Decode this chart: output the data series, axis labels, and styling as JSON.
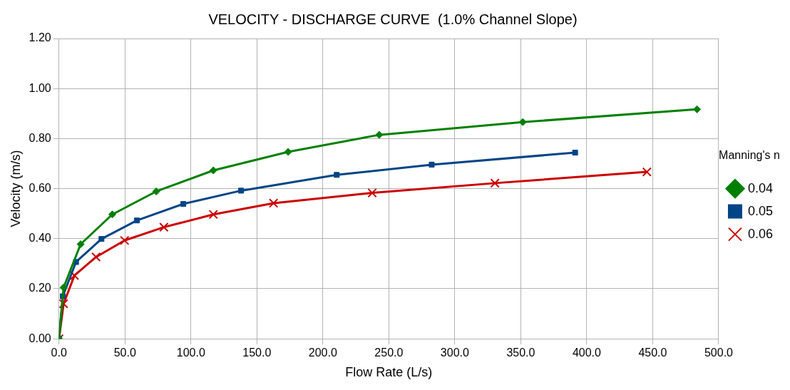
{
  "chart_data": {
    "type": "line",
    "title": "VELOCITY - DISCHARGE CURVE  (1.0% Channel Slope)",
    "xlabel": "Flow Rate (L/s)",
    "ylabel": "Velocity (m/s)",
    "legend_title": "Manning's n",
    "legend": "right",
    "grid": true,
    "line_style": "solid",
    "xlim": [
      0,
      500
    ],
    "xticks": [
      {
        "value": 0,
        "label": "0.0"
      },
      {
        "value": 50,
        "label": "50.0"
      },
      {
        "value": 100,
        "label": "100.0"
      },
      {
        "value": 150,
        "label": "150.0"
      },
      {
        "value": 200,
        "label": "200.0"
      },
      {
        "value": 250,
        "label": "250.0"
      },
      {
        "value": 300,
        "label": "300.0"
      },
      {
        "value": 350,
        "label": "350.0"
      },
      {
        "value": 400,
        "label": "400.0"
      },
      {
        "value": 450,
        "label": "450.0"
      },
      {
        "value": 500,
        "label": "500.0"
      }
    ],
    "ylim": [
      0,
      1.2
    ],
    "yticks": [
      {
        "value": 0,
        "label": "0.00"
      },
      {
        "value": 0.2,
        "label": "0.20"
      },
      {
        "value": 0.4,
        "label": "0.40"
      },
      {
        "value": 0.6,
        "label": "0.60"
      },
      {
        "value": 0.8,
        "label": "0.80"
      },
      {
        "value": 1,
        "label": "1.00"
      },
      {
        "value": 1.2,
        "label": "1.20"
      }
    ],
    "series": [
      {
        "name": "0.04",
        "color": "#008000",
        "marker": "diamond",
        "x": [
          0,
          3.5,
          16.4,
          40.4,
          73.7,
          117,
          173.7,
          242.7,
          351.5,
          483.6
        ],
        "values": [
          0,
          0.205,
          0.378,
          0.497,
          0.589,
          0.673,
          0.747,
          0.815,
          0.866,
          0.917
        ]
      },
      {
        "name": "0.05",
        "color": "#004586",
        "marker": "square",
        "x": [
          0,
          2.9,
          12.9,
          32.2,
          59.1,
          94.2,
          138,
          210.5,
          282.5,
          391.2
        ],
        "values": [
          0,
          0.17,
          0.307,
          0.399,
          0.473,
          0.539,
          0.592,
          0.655,
          0.696,
          0.744
        ]
      },
      {
        "name": "0.06",
        "color": "#cc0000",
        "marker": "cross",
        "x": [
          0,
          3.5,
          11.7,
          28.1,
          49.7,
          79.5,
          117,
          162.6,
          237.4,
          330.4,
          445.6
        ],
        "values": [
          0,
          0.14,
          0.253,
          0.327,
          0.393,
          0.446,
          0.497,
          0.542,
          0.583,
          0.622,
          0.667
        ]
      }
    ]
  }
}
